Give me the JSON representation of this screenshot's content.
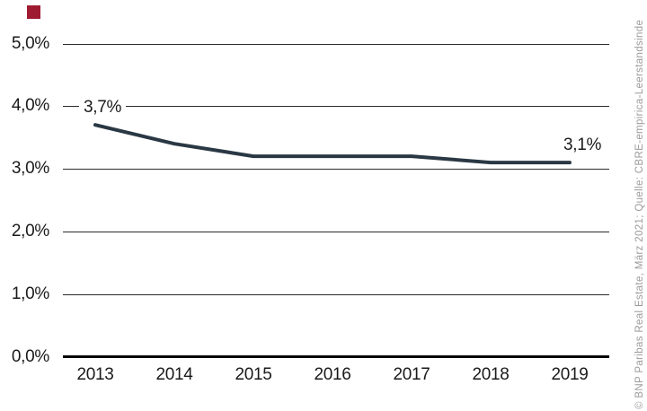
{
  "page": {
    "background_color": "#ffffff",
    "accent_square_color": "#9e1b32"
  },
  "watermark": {
    "text": "© BNP Paribas Real Estate, März 2021; Quelle: CBRE-empirica-Leerstandsinde",
    "color": "#9b9b9b"
  },
  "chart_data": {
    "type": "line",
    "categories": [
      "2013",
      "2014",
      "2015",
      "2016",
      "2017",
      "2018",
      "2019"
    ],
    "values": [
      3.7,
      3.4,
      3.2,
      3.2,
      3.2,
      3.1,
      3.1
    ],
    "unit": "%",
    "ylim": [
      0,
      5
    ],
    "y_ticks": [
      {
        "value": 5.0,
        "label": "5,0%"
      },
      {
        "value": 4.0,
        "label": "4,0%"
      },
      {
        "value": 3.0,
        "label": "3,0%"
      },
      {
        "value": 2.0,
        "label": "2,0%"
      },
      {
        "value": 1.0,
        "label": "1,0%"
      },
      {
        "value": 0.0,
        "label": "0,0%"
      }
    ],
    "grid": "horizontal",
    "legend": "none",
    "line_color": "#2a3844",
    "annotations": [
      {
        "point_index": 0,
        "text": "3,7%"
      },
      {
        "point_index": 6,
        "text": "3,1%"
      }
    ]
  }
}
